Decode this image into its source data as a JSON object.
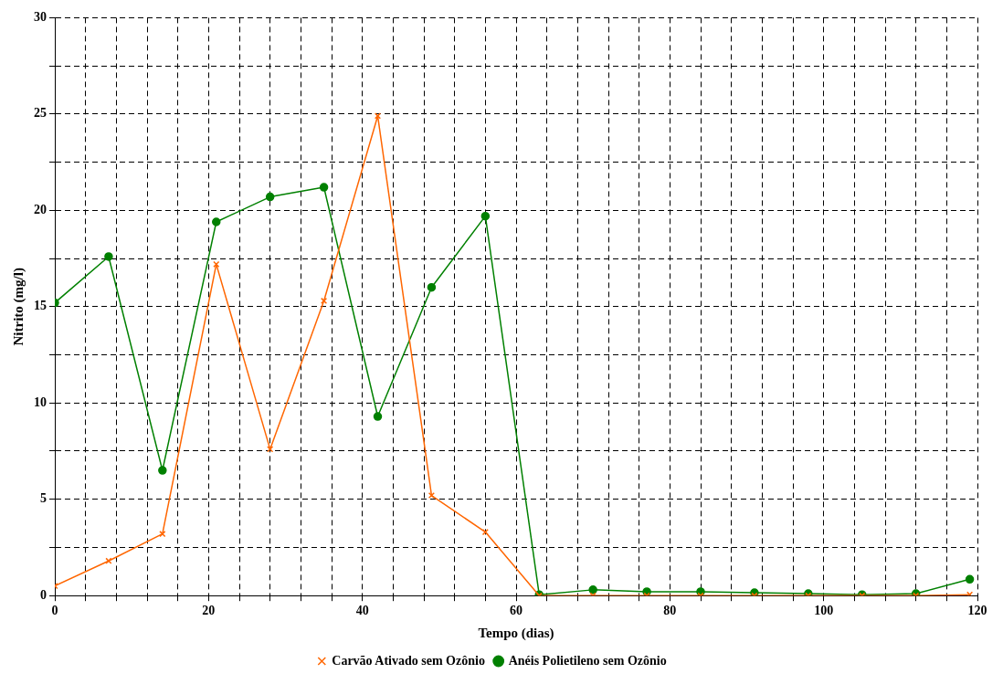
{
  "chart_data": {
    "type": "line",
    "xlabel": "Tempo (dias)",
    "ylabel": "Nitrito (mg/l)",
    "xlim": [
      0,
      120
    ],
    "ylim": [
      0,
      30
    ],
    "xticks": [
      0,
      {
        "value": 4,
        "label": null
      },
      {
        "value": 8,
        "label": null
      },
      {
        "value": 12,
        "label": null
      },
      {
        "value": 16,
        "label": null
      },
      20,
      {
        "value": 24,
        "label": null
      },
      {
        "value": 28,
        "label": null
      },
      {
        "value": 32,
        "label": null
      },
      {
        "value": 36,
        "label": null
      },
      40,
      {
        "value": 44,
        "label": null
      },
      {
        "value": 48,
        "label": null
      },
      {
        "value": 52,
        "label": null
      },
      {
        "value": 56,
        "label": null
      },
      60,
      {
        "value": 64,
        "label": null
      },
      {
        "value": 68,
        "label": null
      },
      {
        "value": 72,
        "label": null
      },
      {
        "value": 76,
        "label": null
      },
      80,
      {
        "value": 84,
        "label": null
      },
      {
        "value": 88,
        "label": null
      },
      {
        "value": 92,
        "label": null
      },
      {
        "value": 96,
        "label": null
      },
      100,
      {
        "value": 104,
        "label": null
      },
      {
        "value": 108,
        "label": null
      },
      {
        "value": 112,
        "label": null
      },
      {
        "value": 116,
        "label": null
      },
      120
    ],
    "yticks": [
      0,
      {
        "value": 2.5,
        "label": null
      },
      5,
      {
        "value": 7.5,
        "label": null
      },
      10,
      {
        "value": 12.5,
        "label": null
      },
      15,
      {
        "value": 17.5,
        "label": null
      },
      20,
      {
        "value": 22.5,
        "label": null
      },
      25,
      {
        "value": 27.5,
        "label": null
      },
      30
    ],
    "x": [
      0,
      7,
      14,
      21,
      28,
      35,
      42,
      49,
      56,
      63,
      70,
      77,
      84,
      91,
      98,
      105,
      112,
      119
    ],
    "series": [
      {
        "name": "Carvão Ativado sem Ozônio",
        "color": "#ff6600",
        "marker": "cross",
        "values": [
          0.5,
          1.8,
          3.2,
          17.2,
          7.6,
          15.3,
          24.9,
          5.2,
          3.3,
          0,
          0,
          0,
          0,
          0,
          0,
          0,
          0,
          0.05
        ]
      },
      {
        "name": "Anéis Polietileno sem Ozônio",
        "color": "#008000",
        "marker": "circle",
        "values": [
          15.2,
          17.6,
          6.5,
          19.4,
          20.7,
          21.2,
          9.3,
          16.0,
          19.7,
          0.05,
          0.3,
          0.2,
          0.2,
          0.15,
          0.1,
          0.05,
          0.1,
          0.85
        ]
      }
    ],
    "grid": true,
    "legend": "bottom",
    "line_style": "solid"
  }
}
